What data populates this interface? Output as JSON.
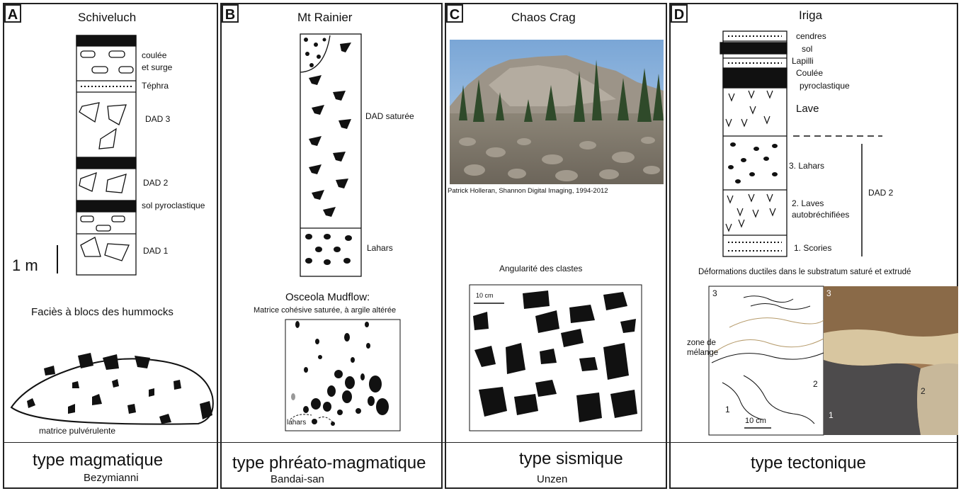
{
  "panels": [
    {
      "letter": "A",
      "title": "Schiveluch",
      "labels": {
        "coulee": "coulée",
        "surge": "et surge",
        "tephra": "Téphra",
        "dad3": "DAD 3",
        "dad2": "DAD 2",
        "sol": "sol pyroclastique",
        "dad1": "DAD 1",
        "scale": "1 m"
      },
      "facies_title": "Faciès à blocs des hummocks",
      "matrix_label": "matrice pulvérulente",
      "footer_type": "type magmatique",
      "footer_example": "Bezymianni"
    },
    {
      "letter": "B",
      "title": "Mt Rainier",
      "labels": {
        "dad_saturee": "DAD saturée",
        "lahars": "Lahars"
      },
      "mudflow_title": "Osceola Mudflow:",
      "mudflow_sub": "Matrice cohésive saturée, à argile altérée",
      "mudflow_lahars": "lahars",
      "footer_type": "type phréato-magmatique",
      "footer_example": "Bandai-san"
    },
    {
      "letter": "C",
      "title": "Chaos Crag",
      "photo_credit": "Patrick Holleran, Shannon Digital Imaging, 1994-2012",
      "angularity_title": "Angularité des clastes",
      "scale": "10 cm",
      "footer_type": "type sismique",
      "footer_example": "Unzen"
    },
    {
      "letter": "D",
      "title": "Iriga",
      "labels": {
        "cendres": "cendres",
        "sol": "sol",
        "lapilli": "Lapilli",
        "coulee": "Coulée",
        "pyroclastique": "pyroclastique",
        "lave": "Lave",
        "lahars": "3. Lahars",
        "laves": "2. Laves",
        "autobrechifiees": "autobréchifiées",
        "scories": "1. Scories",
        "dad2": "DAD 2"
      },
      "deformation_title": "Déformations ductiles dans le substratum saturé et extrudé",
      "zone_label_1": "zone de",
      "zone_label_2": "mélange",
      "sketch_numbers": [
        "3",
        "2",
        "1"
      ],
      "photo_numbers": [
        "3",
        "2",
        "1"
      ],
      "scale": "10 cm",
      "footer_type": "type tectonique"
    }
  ]
}
